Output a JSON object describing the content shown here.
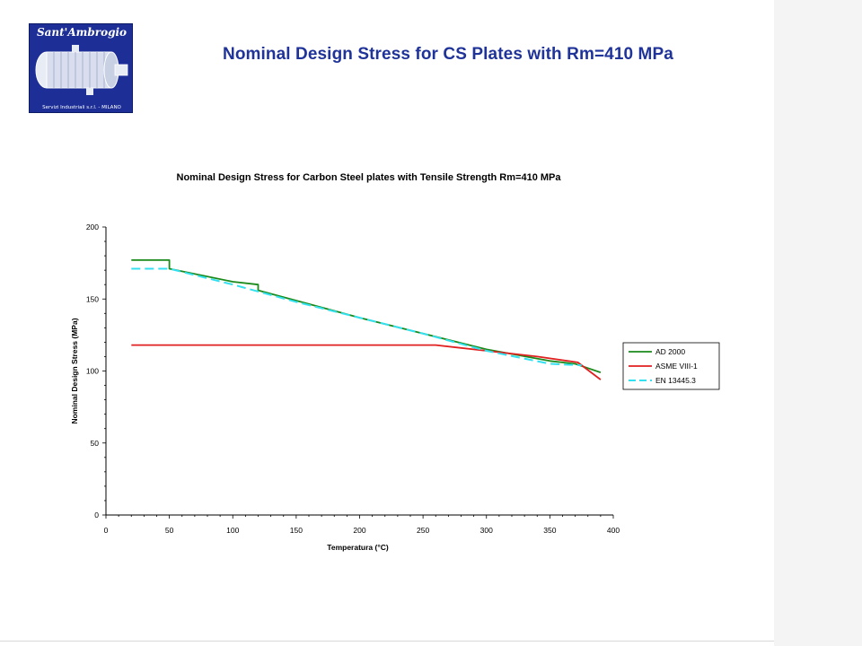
{
  "slide": {
    "title": "Nominal Design Stress for CS Plates with Rm=410 MPa"
  },
  "logo": {
    "name": "Sant'Ambrogio",
    "subtitle": "Servizi Industriali s.r.l. - MILANO"
  },
  "colors": {
    "title": "#1f3399",
    "logo_bg": "#1d2f96",
    "ad2000": "#1a8a1a",
    "asme": "#e02020",
    "en13445": "#33e0f0"
  },
  "chart_data": {
    "type": "line",
    "title": "Nominal Design Stress for Carbon Steel plates with Tensile Strength  Rm=410 MPa",
    "xlabel": "Temperatura (°C)",
    "ylabel": "Nominal Design Stress (MPa)",
    "xlim": [
      0,
      400
    ],
    "ylim": [
      0,
      200
    ],
    "x_ticks": [
      0,
      50,
      100,
      150,
      200,
      250,
      300,
      350,
      400
    ],
    "y_ticks": [
      0,
      50,
      100,
      150,
      200
    ],
    "grid": false,
    "legend_position": "right",
    "series": [
      {
        "name": "AD 2000",
        "color": "#1a8a1a",
        "dash": "solid",
        "points": [
          [
            20,
            177
          ],
          [
            50,
            177
          ],
          [
            50,
            171
          ],
          [
            100,
            162
          ],
          [
            120,
            160
          ],
          [
            120,
            156
          ],
          [
            200,
            137
          ],
          [
            300,
            115
          ],
          [
            350,
            107
          ],
          [
            370,
            105
          ],
          [
            380,
            102
          ],
          [
            390,
            99
          ]
        ]
      },
      {
        "name": "ASME VIII-1",
        "color": "#e02020",
        "dash": "solid",
        "points": [
          [
            20,
            118
          ],
          [
            260,
            118
          ],
          [
            300,
            114
          ],
          [
            340,
            110
          ],
          [
            372,
            106
          ],
          [
            390,
            94
          ]
        ]
      },
      {
        "name": "EN 13445.3",
        "color": "#33e0f0",
        "dash": "dashed",
        "points": [
          [
            20,
            171
          ],
          [
            50,
            171
          ],
          [
            100,
            160
          ],
          [
            150,
            148
          ],
          [
            200,
            137
          ],
          [
            250,
            126
          ],
          [
            300,
            114
          ],
          [
            350,
            105
          ],
          [
            375,
            104
          ]
        ]
      }
    ]
  }
}
